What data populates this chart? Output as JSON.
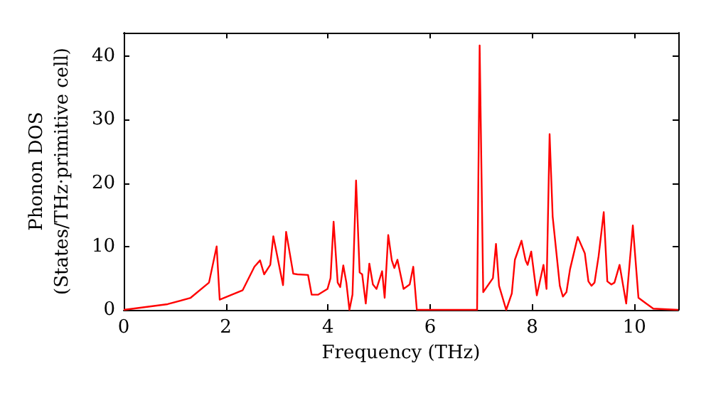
{
  "chart_data": {
    "type": "line",
    "xlabel": "Frequency (THz)",
    "ylabel": "Phonon DOS\n(States/THz·primitive cell)",
    "series": [
      {
        "color": "#ff0000",
        "x": [
          0,
          0.86,
          1.31,
          1.67,
          1.82,
          1.88,
          2.33,
          2.56,
          2.67,
          2.75,
          2.87,
          2.93,
          3.12,
          3.18,
          3.32,
          3.4,
          3.61,
          3.68,
          3.81,
          3.99,
          4.05,
          4.11,
          4.19,
          4.24,
          4.3,
          4.36,
          4.42,
          4.48,
          4.55,
          4.62,
          4.67,
          4.74,
          4.81,
          4.88,
          4.95,
          5.06,
          5.11,
          5.18,
          5.25,
          5.3,
          5.36,
          5.48,
          5.6,
          5.67,
          5.74,
          6.92,
          6.97,
          7.04,
          7.23,
          7.29,
          7.35,
          7.49,
          7.6,
          7.66,
          7.79,
          7.87,
          7.91,
          7.98,
          8.09,
          8.22,
          8.28,
          8.34,
          8.4,
          8.54,
          8.6,
          8.67,
          8.74,
          8.89,
          9.03,
          9.1,
          9.16,
          9.22,
          9.3,
          9.4,
          9.47,
          9.55,
          9.61,
          9.71,
          9.84,
          9.97,
          10.08,
          10.23,
          10.37,
          10.86
        ],
        "values": [
          0,
          0.9,
          1.9,
          4.3,
          10,
          1.6,
          3.1,
          6.8,
          7.8,
          5.6,
          7.1,
          11.6,
          3.9,
          12.3,
          5.7,
          5.6,
          5.5,
          2.4,
          2.4,
          3.3,
          5,
          13.9,
          4.3,
          3.6,
          7,
          4.3,
          0,
          2.4,
          20.4,
          5.9,
          5.6,
          1,
          7.3,
          4,
          3.3,
          6.1,
          1.9,
          11.8,
          7.8,
          6.6,
          7.9,
          3.3,
          4,
          6.8,
          0,
          0,
          41.7,
          2.8,
          5,
          10.4,
          3.8,
          0,
          2.6,
          7.9,
          10.9,
          7.8,
          7.1,
          9.2,
          2.3,
          7.1,
          3.3,
          27.7,
          14.7,
          3.8,
          2.1,
          2.8,
          6.4,
          11.5,
          8.9,
          4.5,
          3.8,
          4.3,
          8.5,
          15.4,
          4.5,
          4,
          4.3,
          7.1,
          1,
          13.3,
          1.9,
          1,
          0.2,
          0
        ]
      }
    ],
    "xlim": [
      0,
      10.86
    ],
    "xticks": [
      0,
      2,
      4,
      6,
      8,
      10
    ],
    "ylim": [
      0,
      43.7
    ],
    "yticks": [
      0,
      10,
      20,
      30,
      40
    ],
    "grid": false,
    "marker": "none",
    "line_style": "solid"
  }
}
